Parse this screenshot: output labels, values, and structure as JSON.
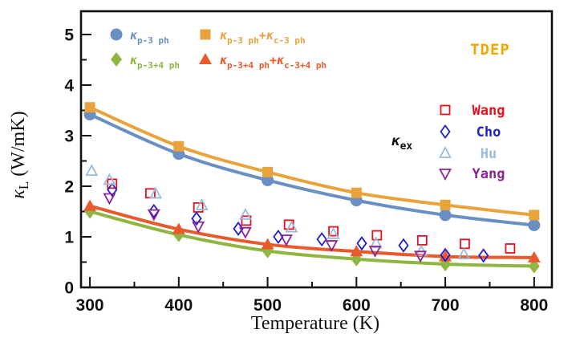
{
  "colors": {
    "frame": "#111111",
    "p3ph": "#6a8fc3",
    "p3ph_c3ph": "#e9a33b",
    "p34ph": "#8fb640",
    "p34ph_c34ph": "#e8592b",
    "tdep": "#f2a800",
    "wang": "#e8101f",
    "cho": "#1f1fd0",
    "hu": "#99bcd8",
    "yang": "#8e2393"
  },
  "chart_data": {
    "type": "line",
    "title": "",
    "xlabel": "Temperature (K)",
    "ylabel": "κ_{L} (W/mK)",
    "annotation": "TDEP",
    "exp_group_label": "κ_{ex}",
    "xlim": [
      290,
      820
    ],
    "ylim": [
      0,
      5.46
    ],
    "x_ticks": [
      300,
      400,
      500,
      600,
      700,
      800
    ],
    "x_minor_ticks": [
      350,
      450,
      550,
      650,
      750
    ],
    "y_ticks": [
      0,
      1,
      2,
      3,
      4,
      5
    ],
    "y_minor_ticks": [
      0.5,
      1.5,
      2.5,
      3.5,
      4.5
    ],
    "grid": false,
    "legend_position": "upper-left-inside",
    "exp_legend_position": "right-inside",
    "x": [
      300,
      400,
      500,
      600,
      700,
      800
    ],
    "series": [
      {
        "name": "κ_{p-3 ph}",
        "marker": "circle",
        "color": "#6a8fc3",
        "values": [
          3.42,
          2.64,
          2.12,
          1.72,
          1.43,
          1.23
        ]
      },
      {
        "name": "κ_{p-3 ph}+κ_{c-3 ph}",
        "marker": "square",
        "color": "#e9a33b",
        "values": [
          3.56,
          2.79,
          2.28,
          1.87,
          1.63,
          1.43
        ]
      },
      {
        "name": "κ_{p-3+4 ph}",
        "marker": "diamond",
        "color": "#8fb640",
        "values": [
          1.5,
          1.04,
          0.72,
          0.56,
          0.46,
          0.42
        ]
      },
      {
        "name": "κ_{p-3+4 ph}+κ_{c-3+4 ph}",
        "marker": "triangle-up",
        "color": "#e8592b",
        "values": [
          1.61,
          1.15,
          0.85,
          0.71,
          0.61,
          0.59
        ]
      }
    ],
    "experimental": [
      {
        "name": "Wang",
        "marker": "square-open",
        "color": "#e8101f",
        "points": [
          [
            325,
            2.05
          ],
          [
            368,
            1.86
          ],
          [
            422,
            1.58
          ],
          [
            476,
            1.32
          ],
          [
            524,
            1.24
          ],
          [
            574,
            1.11
          ],
          [
            623,
            1.03
          ],
          [
            674,
            0.93
          ],
          [
            722,
            0.86
          ],
          [
            773,
            0.77
          ]
        ]
      },
      {
        "name": "Cho",
        "marker": "diamond-open",
        "color": "#1f1fd0",
        "points": [
          [
            325,
            1.93
          ],
          [
            372,
            1.51
          ],
          [
            420,
            1.36
          ],
          [
            467,
            1.16
          ],
          [
            512,
            1.0
          ],
          [
            561,
            0.95
          ],
          [
            606,
            0.87
          ],
          [
            653,
            0.83
          ],
          [
            700,
            0.64
          ],
          [
            743,
            0.63
          ]
        ]
      },
      {
        "name": "Hu",
        "marker": "triangle-up-open",
        "color": "#99bcd8",
        "points": [
          [
            302,
            2.3
          ],
          [
            322,
            2.12
          ],
          [
            374,
            1.85
          ],
          [
            426,
            1.62
          ],
          [
            475,
            1.43
          ],
          [
            527,
            1.18
          ],
          [
            574,
            1.05
          ],
          [
            622,
            0.87
          ],
          [
            673,
            0.71
          ],
          [
            721,
            0.65
          ]
        ]
      },
      {
        "name": "Yang",
        "marker": "triangle-down-open",
        "color": "#8e2393",
        "points": [
          [
            322,
            1.77
          ],
          [
            372,
            1.45
          ],
          [
            422,
            1.21
          ],
          [
            475,
            1.1
          ],
          [
            521,
            0.95
          ],
          [
            572,
            0.84
          ],
          [
            621,
            0.73
          ],
          [
            672,
            0.63
          ]
        ]
      }
    ]
  }
}
